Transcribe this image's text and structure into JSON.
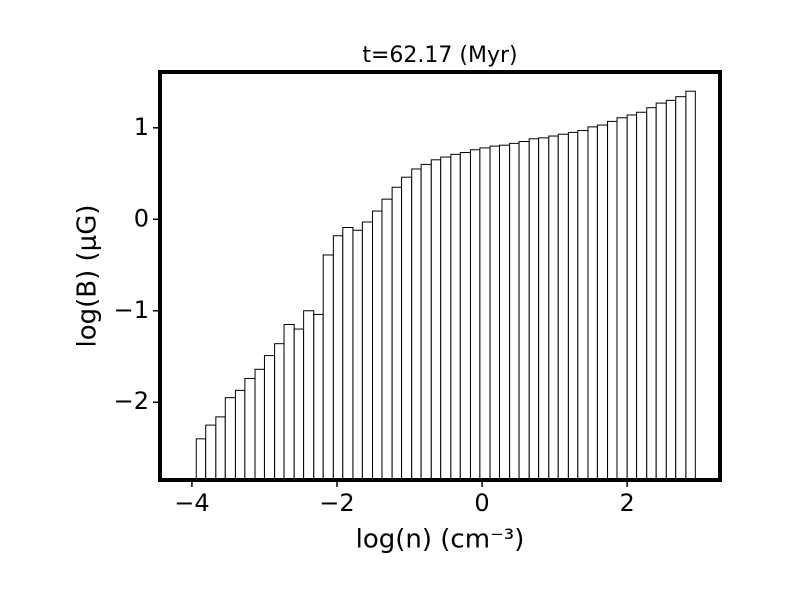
{
  "chart_data": {
    "type": "histogram",
    "title": "t=62.17 (Myr)",
    "x_label": "log(n) (cm⁻³)",
    "y_label": "log(B) (μG)",
    "bins": [
      -3.94,
      -3.81,
      -3.67,
      -3.54,
      -3.4,
      -3.27,
      -3.13,
      -3.0,
      -2.86,
      -2.73,
      -2.59,
      -2.46,
      -2.32,
      -2.19,
      -2.05,
      -1.92,
      -1.78,
      -1.65,
      -1.51,
      -1.38,
      -1.24,
      -1.11,
      -0.97,
      -0.84,
      -0.7,
      -0.57,
      -0.43,
      -0.3,
      -0.16,
      -0.03,
      0.11,
      0.24,
      0.38,
      0.51,
      0.65,
      0.78,
      0.92,
      1.05,
      1.19,
      1.32,
      1.46,
      1.59,
      1.73,
      1.86,
      2.0,
      2.13,
      2.27,
      2.4,
      2.54,
      2.67,
      2.81,
      2.94
    ],
    "values": [
      -2.4,
      -2.25,
      -2.16,
      -1.95,
      -1.87,
      -1.74,
      -1.64,
      -1.49,
      -1.36,
      -1.15,
      -1.2,
      -1.0,
      -1.04,
      -0.39,
      -0.18,
      -0.09,
      -0.12,
      -0.03,
      0.09,
      0.22,
      0.35,
      0.46,
      0.55,
      0.6,
      0.65,
      0.68,
      0.71,
      0.73,
      0.76,
      0.78,
      0.8,
      0.81,
      0.83,
      0.85,
      0.88,
      0.89,
      0.91,
      0.93,
      0.95,
      0.97,
      1.01,
      1.03,
      1.07,
      1.11,
      1.14,
      1.17,
      1.22,
      1.27,
      1.3,
      1.34,
      1.4
    ],
    "color": "#ffffff",
    "edgecolor": "#000000",
    "xlim": [
      -4.44,
      3.28
    ],
    "ylim": [
      -2.85,
      1.61
    ],
    "xticks": [
      {
        "value": -4,
        "label": "−4"
      },
      {
        "value": -2,
        "label": "−2"
      },
      0,
      2
    ],
    "yticks": [
      {
        "value": -2,
        "label": "−2"
      },
      {
        "value": -1,
        "label": "−1"
      },
      0,
      1
    ]
  }
}
